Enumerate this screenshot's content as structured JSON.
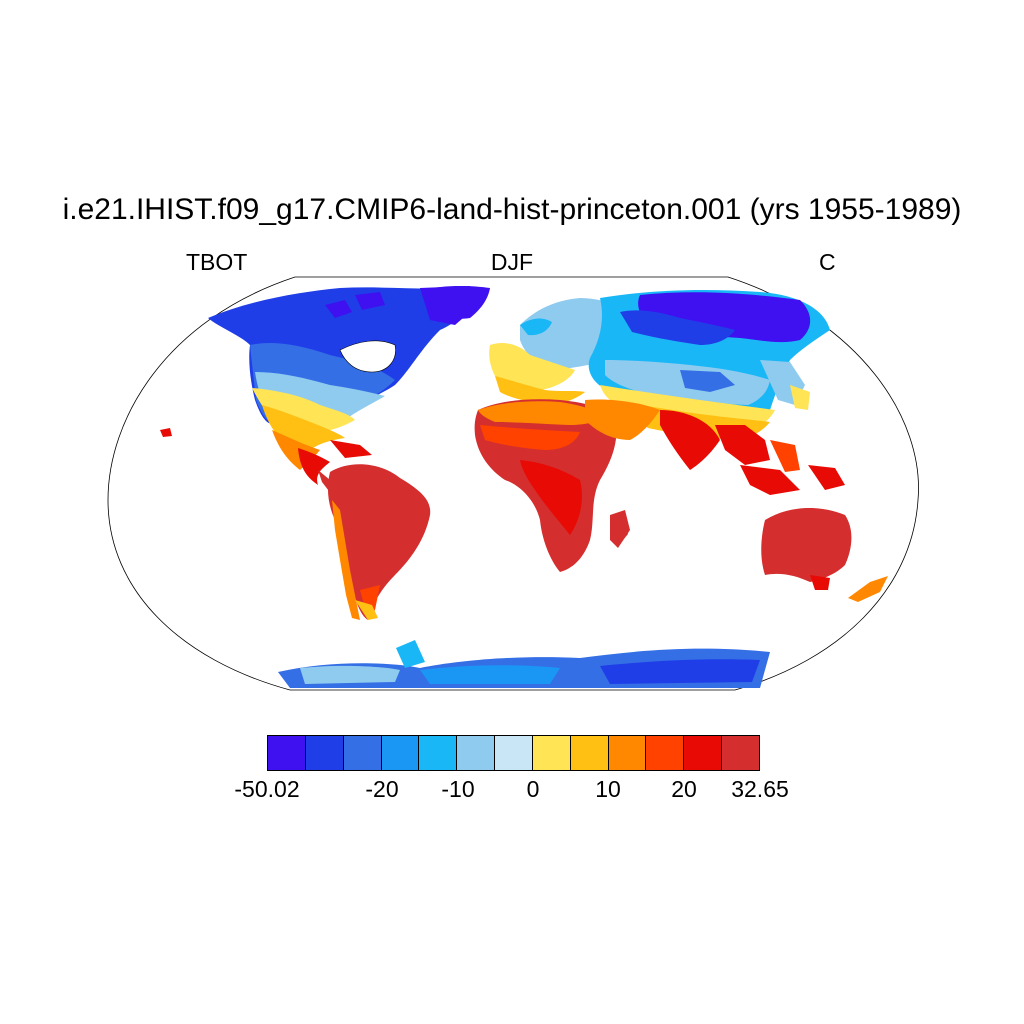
{
  "title": "i.e21.IHIST.f09_g17.CMIP6-land-hist-princeton.001 (yrs 1955-1989)",
  "left_label": "TBOT",
  "center_label": "DJF",
  "right_label": "C",
  "colorbar": {
    "colors": [
      "#3f10f0",
      "#1f3ee8",
      "#356fe6",
      "#1a96f5",
      "#1ab7f7",
      "#8fcbef",
      "#c9e6f7",
      "#ffe455",
      "#ffbf13",
      "#ff8800",
      "#ff4200",
      "#e80a05",
      "#d42e2e"
    ],
    "labels": [
      "-50.02",
      "-20",
      "-10",
      "0",
      "10",
      "20",
      "32.65"
    ],
    "range": [
      -50.02,
      32.65
    ]
  }
}
